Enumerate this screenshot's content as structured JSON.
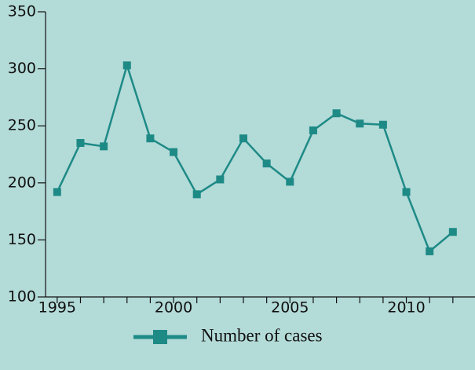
{
  "chart_data": {
    "type": "line",
    "x": [
      1995,
      1996,
      1997,
      1998,
      1999,
      2000,
      2001,
      2002,
      2003,
      2004,
      2005,
      2006,
      2007,
      2008,
      2009,
      2010,
      2011,
      2012
    ],
    "series": [
      {
        "name": "Number of cases",
        "color": "#1e8a86",
        "values": [
          192,
          235,
          232,
          303,
          239,
          227,
          190,
          203,
          239,
          217,
          201,
          246,
          261,
          252,
          251,
          192,
          140,
          157
        ]
      }
    ],
    "xlim": [
      1994.5,
      2012.95
    ],
    "xticks": [
      1995,
      2000,
      2005,
      2010
    ],
    "minor_xticks": [
      1996,
      1997,
      1998,
      1999,
      2001,
      2002,
      2003,
      2004,
      2006,
      2007,
      2008,
      2009,
      2011,
      2012
    ],
    "ylim": [
      100,
      350
    ],
    "yticks": [
      100,
      150,
      200,
      250,
      300,
      350
    ],
    "legend": "bottom",
    "grid": false
  }
}
